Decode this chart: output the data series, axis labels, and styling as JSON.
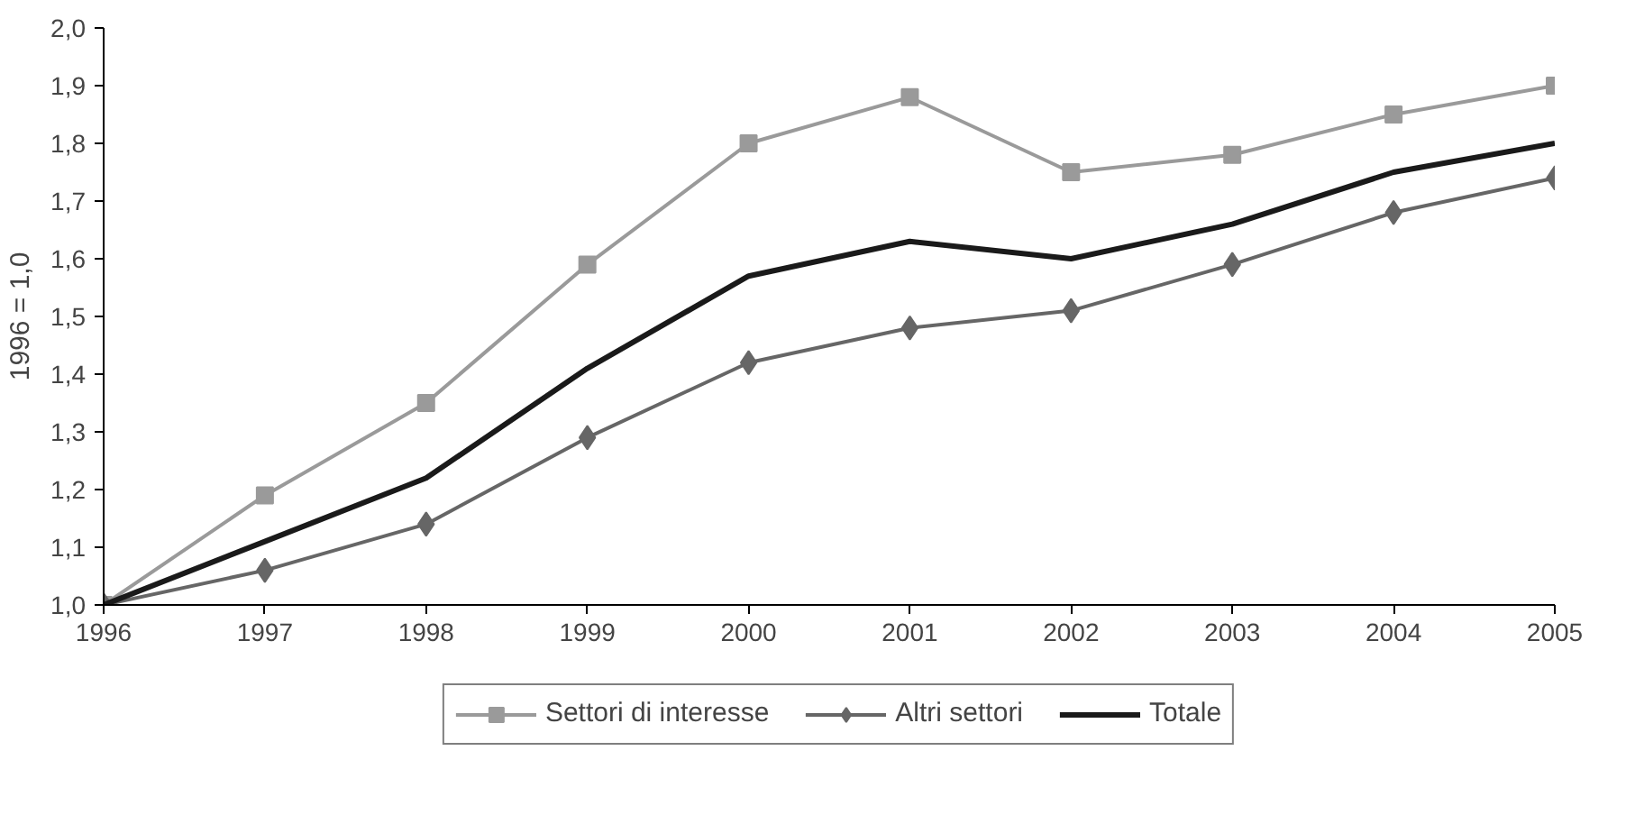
{
  "chart_data": {
    "type": "line",
    "ylabel": "1996 = 1,0",
    "x": [
      1996,
      1997,
      1998,
      1999,
      2000,
      2001,
      2002,
      2003,
      2004,
      2005
    ],
    "xlim": [
      1996,
      2005
    ],
    "xticks": [
      1996,
      1997,
      1998,
      1999,
      2000,
      2001,
      2002,
      2003,
      2004,
      2005
    ],
    "ylim": [
      1.0,
      2.0
    ],
    "yticks": [
      {
        "value": 1.0,
        "label": "1,0"
      },
      {
        "value": 1.1,
        "label": "1,1"
      },
      {
        "value": 1.2,
        "label": "1,2"
      },
      {
        "value": 1.3,
        "label": "1,3"
      },
      {
        "value": 1.4,
        "label": "1,4"
      },
      {
        "value": 1.5,
        "label": "1,5"
      },
      {
        "value": 1.6,
        "label": "1,6"
      },
      {
        "value": 1.7,
        "label": "1,7"
      },
      {
        "value": 1.8,
        "label": "1,8"
      },
      {
        "value": 1.9,
        "label": "1,9"
      },
      {
        "value": 2.0,
        "label": "2,0"
      }
    ],
    "grid": false,
    "legend": "bottom",
    "line_style": "solid",
    "series": [
      {
        "name": "Settori di interesse",
        "color": "#9a9a9a",
        "marker": "square",
        "values": [
          1.0,
          1.19,
          1.35,
          1.59,
          1.8,
          1.88,
          1.75,
          1.78,
          1.85,
          1.9
        ]
      },
      {
        "name": "Altri settori",
        "color": "#666666",
        "marker": "diamond",
        "values": [
          1.0,
          1.06,
          1.14,
          1.29,
          1.42,
          1.48,
          1.51,
          1.59,
          1.68,
          1.74
        ]
      },
      {
        "name": "Totale",
        "color": "#1a1a1a",
        "marker": "none",
        "values": [
          1.0,
          1.11,
          1.22,
          1.41,
          1.57,
          1.63,
          1.6,
          1.66,
          1.75,
          1.8
        ]
      }
    ]
  }
}
